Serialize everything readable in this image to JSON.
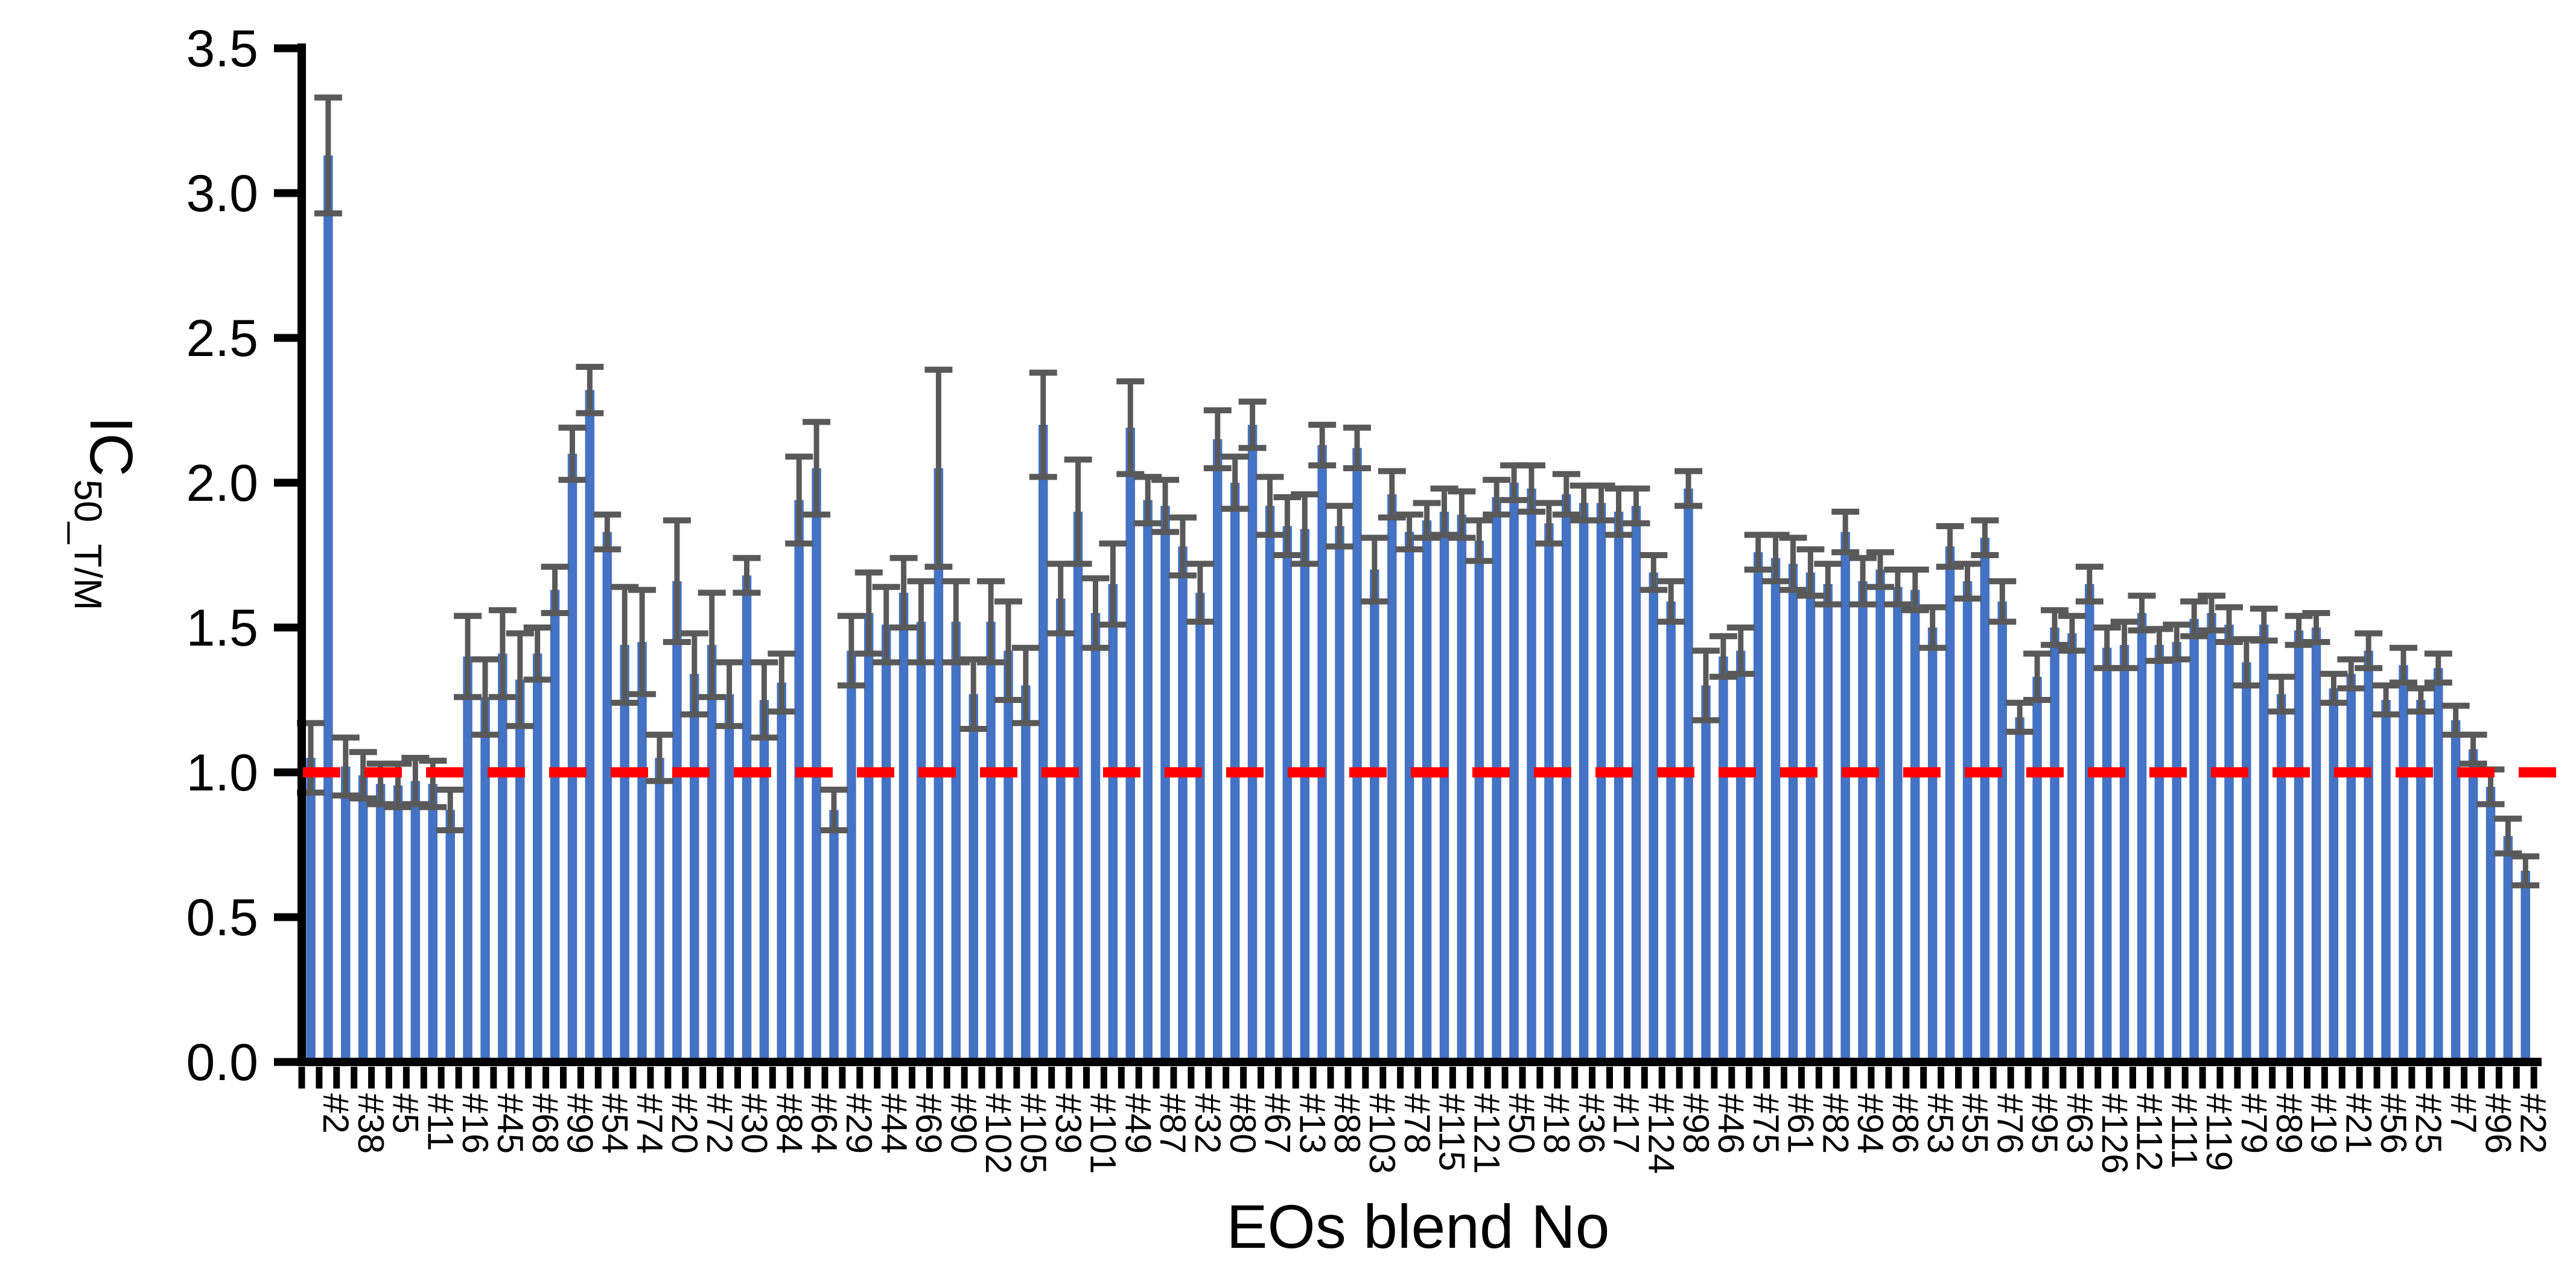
{
  "chart_data": {
    "type": "bar",
    "title": "",
    "xlabel": "EOs blend No",
    "ylabel_main": "IC",
    "ylabel_sub": "50_T/M",
    "ylim": [
      0,
      3.5
    ],
    "ytick_step": 0.5,
    "yticks": [
      "0.0",
      "0.5",
      "1.0",
      "1.5",
      "2.0",
      "2.5",
      "3.0",
      "3.5"
    ],
    "grid": "off",
    "legend": "none",
    "bar_color": "#4472C4",
    "error_bar_color": "#595959",
    "axis_color": "#000000",
    "reference_line": {
      "y": 1.0,
      "color": "#FF0000",
      "style": "dashed"
    },
    "label_rule": "x labels shown under every second bar (1st, 3rd, 5th, ...)",
    "categories": [
      "#2",
      "#38",
      "#5",
      "#11",
      "#16",
      "#45",
      "#68",
      "#99",
      "#54",
      "#74",
      "#20",
      "#72",
      "#30",
      "#84",
      "#64",
      "#29",
      "#44",
      "#69",
      "#90",
      "#102",
      "#105",
      "#39",
      "#101",
      "#49",
      "#87",
      "#32",
      "#80",
      "#67",
      "#13",
      "#88",
      "#103",
      "#78",
      "#115",
      "#121",
      "#50",
      "#18",
      "#36",
      "#17",
      "#124",
      "#98",
      "#46",
      "#75",
      "#61",
      "#82",
      "#94",
      "#86",
      "#53",
      "#55",
      "#76",
      "#95",
      "#63",
      "#126",
      "#112",
      "#111",
      "#119",
      "#79",
      "#89",
      "#19",
      "#21",
      "#56",
      "#25",
      "#7",
      "#96",
      "#22"
    ],
    "series": [
      {
        "name": "IC50_T/M",
        "values": [
          1.05,
          3.13,
          1.02,
          0.99,
          0.96,
          0.955,
          0.97,
          0.96,
          0.87,
          1.4,
          1.26,
          1.41,
          1.32,
          1.41,
          1.63,
          2.1,
          2.32,
          1.83,
          1.44,
          1.45,
          1.05,
          1.66,
          1.34,
          1.44,
          1.27,
          1.68,
          1.25,
          1.31,
          1.94,
          2.05,
          0.87,
          1.42,
          1.55,
          1.51,
          1.62,
          1.52,
          2.05,
          1.52,
          1.27,
          1.52,
          1.42,
          1.3,
          2.2,
          1.6,
          1.9,
          1.55,
          1.65,
          2.19,
          1.94,
          1.92,
          1.78,
          1.62,
          2.15,
          2.0,
          2.2,
          1.92,
          1.85,
          1.84,
          2.13,
          1.85,
          2.12,
          1.7,
          1.96,
          1.83,
          1.87,
          1.9,
          1.89,
          1.8,
          1.95,
          2.0,
          1.98,
          1.86,
          1.96,
          1.93,
          1.93,
          1.9,
          1.92,
          1.69,
          1.59,
          1.98,
          1.3,
          1.4,
          1.42,
          1.76,
          1.74,
          1.72,
          1.69,
          1.65,
          1.83,
          1.66,
          1.7,
          1.64,
          1.63,
          1.5,
          1.78,
          1.66,
          1.81,
          1.59,
          1.19,
          1.33,
          1.5,
          1.48,
          1.65,
          1.43,
          1.44,
          1.55,
          1.44,
          1.45,
          1.53,
          1.55,
          1.51,
          1.38,
          1.51,
          1.27,
          1.49,
          1.5,
          1.29,
          1.34,
          1.42,
          1.25,
          1.37,
          1.25,
          1.36,
          1.18,
          1.08,
          0.95,
          0.78,
          0.66
        ],
        "errors": [
          0.12,
          0.2,
          0.1,
          0.08,
          0.07,
          0.075,
          0.08,
          0.08,
          0.07,
          0.14,
          0.13,
          0.15,
          0.16,
          0.09,
          0.08,
          0.09,
          0.08,
          0.06,
          0.2,
          0.18,
          0.08,
          0.21,
          0.14,
          0.18,
          0.11,
          0.06,
          0.13,
          0.1,
          0.15,
          0.16,
          0.07,
          0.12,
          0.14,
          0.13,
          0.12,
          0.14,
          0.34,
          0.14,
          0.12,
          0.14,
          0.17,
          0.13,
          0.18,
          0.12,
          0.18,
          0.12,
          0.14,
          0.16,
          0.08,
          0.09,
          0.1,
          0.1,
          0.1,
          0.09,
          0.08,
          0.1,
          0.1,
          0.12,
          0.07,
          0.07,
          0.07,
          0.11,
          0.08,
          0.06,
          0.06,
          0.08,
          0.08,
          0.07,
          0.06,
          0.06,
          0.08,
          0.07,
          0.07,
          0.06,
          0.06,
          0.08,
          0.06,
          0.06,
          0.07,
          0.06,
          0.12,
          0.07,
          0.08,
          0.06,
          0.08,
          0.09,
          0.08,
          0.07,
          0.07,
          0.08,
          0.06,
          0.06,
          0.07,
          0.07,
          0.07,
          0.06,
          0.06,
          0.07,
          0.05,
          0.08,
          0.06,
          0.06,
          0.06,
          0.07,
          0.08,
          0.06,
          0.055,
          0.06,
          0.06,
          0.06,
          0.06,
          0.08,
          0.055,
          0.06,
          0.05,
          0.05,
          0.05,
          0.05,
          0.06,
          0.05,
          0.06,
          0.04,
          0.05,
          0.05,
          0.05,
          0.06,
          0.06,
          0.05
        ]
      }
    ]
  }
}
